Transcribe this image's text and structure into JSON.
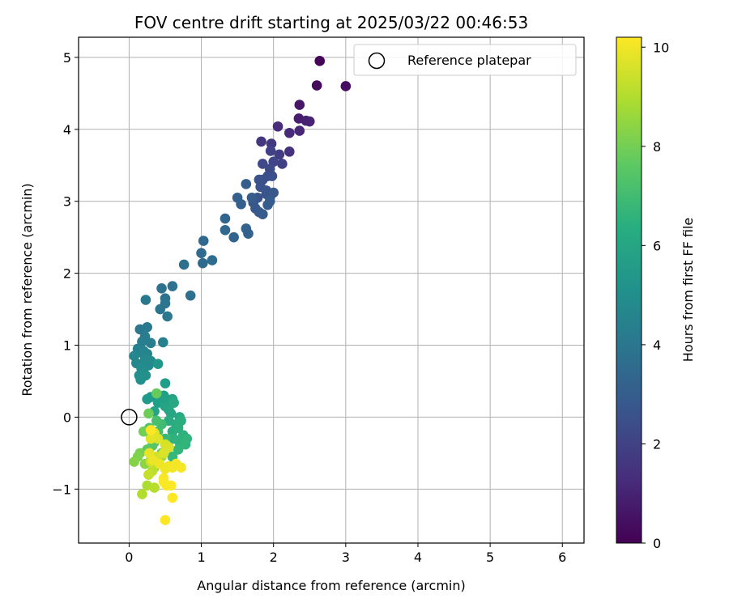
{
  "chart_data": {
    "type": "scatter",
    "title": "FOV centre drift starting at 2025/03/22 00:46:53",
    "xlabel": "Angular distance from reference (arcmin)",
    "ylabel": "Rotation from reference (arcmin)",
    "xlim": [
      -0.7,
      6.3
    ],
    "ylim": [
      -1.75,
      5.28
    ],
    "xticks": [
      0,
      1,
      2,
      3,
      4,
      5,
      6
    ],
    "xtick_labels": [
      "0",
      "1",
      "2",
      "3",
      "4",
      "5",
      "6"
    ],
    "yticks": [
      -1,
      0,
      1,
      2,
      3,
      4,
      5
    ],
    "ytick_labels": [
      "−1",
      "0",
      "1",
      "2",
      "3",
      "4",
      "5"
    ],
    "grid": true,
    "colormap": "viridis",
    "colorbar": {
      "label": "Hours from first FF file",
      "range": [
        0,
        10.2
      ],
      "ticks": [
        0,
        2,
        4,
        6,
        8,
        10
      ],
      "tick_labels": [
        "0",
        "2",
        "4",
        "6",
        "8",
        "10"
      ]
    },
    "legend": {
      "position": "top-right",
      "entries": [
        {
          "label": "Reference platepar",
          "marker": "hollow-circle",
          "color": "#000000"
        }
      ]
    },
    "reference_point": {
      "x": 0,
      "y": 0
    },
    "points": [
      [
        2.64,
        4.95,
        0.1
      ],
      [
        2.6,
        4.61,
        0.25
      ],
      [
        3.0,
        4.6,
        0.35
      ],
      [
        2.36,
        4.34,
        0.6
      ],
      [
        2.35,
        4.15,
        0.8
      ],
      [
        2.45,
        4.12,
        0.9
      ],
      [
        2.5,
        4.11,
        1.0
      ],
      [
        2.36,
        3.98,
        1.1
      ],
      [
        2.22,
        3.95,
        1.2
      ],
      [
        2.06,
        4.04,
        1.3
      ],
      [
        2.22,
        3.69,
        1.5
      ],
      [
        1.83,
        3.83,
        1.6
      ],
      [
        1.97,
        3.8,
        1.7
      ],
      [
        2.08,
        3.65,
        1.8
      ],
      [
        2.12,
        3.52,
        1.9
      ],
      [
        1.96,
        3.7,
        2.0
      ],
      [
        2.0,
        3.55,
        2.1
      ],
      [
        1.85,
        3.52,
        2.2
      ],
      [
        1.95,
        3.45,
        2.3
      ],
      [
        1.92,
        3.35,
        2.4
      ],
      [
        1.85,
        3.3,
        2.5
      ],
      [
        1.98,
        3.35,
        2.5
      ],
      [
        1.8,
        3.3,
        2.55
      ],
      [
        1.82,
        3.2,
        2.6
      ],
      [
        1.9,
        3.15,
        2.6
      ],
      [
        1.78,
        3.05,
        2.65
      ],
      [
        1.9,
        3.1,
        2.7
      ],
      [
        1.95,
        3.05,
        2.7
      ],
      [
        2.0,
        3.12,
        2.75
      ],
      [
        1.72,
        2.98,
        2.8
      ],
      [
        1.75,
        2.9,
        2.8
      ],
      [
        1.8,
        2.85,
        2.85
      ],
      [
        1.85,
        2.82,
        2.9
      ],
      [
        1.92,
        2.95,
        2.9
      ],
      [
        1.95,
        3.0,
        2.95
      ],
      [
        1.7,
        3.05,
        3.0
      ],
      [
        1.62,
        3.24,
        3.0
      ],
      [
        1.5,
        3.05,
        3.05
      ],
      [
        1.55,
        2.96,
        3.1
      ],
      [
        1.65,
        2.55,
        3.15
      ],
      [
        1.62,
        2.62,
        3.2
      ],
      [
        1.45,
        2.5,
        3.25
      ],
      [
        1.33,
        2.76,
        3.3
      ],
      [
        1.33,
        2.6,
        3.35
      ],
      [
        1.03,
        2.45,
        3.4
      ],
      [
        1.0,
        2.28,
        3.5
      ],
      [
        1.02,
        2.14,
        3.55
      ],
      [
        1.15,
        2.18,
        3.6
      ],
      [
        0.76,
        2.12,
        3.7
      ],
      [
        0.85,
        1.69,
        3.75
      ],
      [
        0.45,
        1.79,
        3.8
      ],
      [
        0.6,
        1.82,
        3.85
      ],
      [
        0.5,
        1.65,
        3.9
      ],
      [
        0.5,
        1.58,
        3.95
      ],
      [
        0.43,
        1.5,
        4.0
      ],
      [
        0.53,
        1.4,
        4.05
      ],
      [
        0.23,
        1.63,
        4.1
      ],
      [
        0.15,
        1.22,
        4.15
      ],
      [
        0.25,
        1.25,
        4.2
      ],
      [
        0.22,
        1.12,
        4.25
      ],
      [
        0.18,
        1.05,
        4.3
      ],
      [
        0.3,
        1.03,
        4.35
      ],
      [
        0.47,
        1.04,
        4.4
      ],
      [
        0.12,
        0.95,
        4.5
      ],
      [
        0.15,
        0.9,
        4.55
      ],
      [
        0.2,
        0.92,
        4.6
      ],
      [
        0.25,
        0.88,
        4.65
      ],
      [
        0.1,
        0.75,
        4.7
      ],
      [
        0.07,
        0.85,
        4.75
      ],
      [
        0.22,
        0.8,
        4.8
      ],
      [
        0.27,
        0.72,
        4.85
      ],
      [
        0.3,
        0.78,
        4.9
      ],
      [
        0.17,
        0.68,
        4.95
      ],
      [
        0.2,
        0.62,
        5.0
      ],
      [
        0.14,
        0.58,
        5.05
      ],
      [
        0.23,
        0.58,
        5.1
      ],
      [
        0.16,
        0.52,
        5.15
      ],
      [
        0.4,
        0.74,
        5.4
      ],
      [
        0.25,
        0.25,
        5.5
      ],
      [
        0.3,
        0.28,
        5.6
      ],
      [
        0.5,
        0.47,
        5.65
      ],
      [
        0.48,
        0.3,
        5.7
      ],
      [
        0.4,
        0.2,
        5.75
      ],
      [
        0.52,
        0.25,
        5.8
      ],
      [
        0.6,
        0.25,
        5.85
      ],
      [
        0.35,
        0.08,
        5.9
      ],
      [
        0.5,
        0.15,
        5.95
      ],
      [
        0.55,
        0.1,
        6.0
      ],
      [
        0.58,
        0.05,
        6.05
      ],
      [
        0.62,
        0.2,
        6.1
      ],
      [
        0.7,
        0.0,
        6.15
      ],
      [
        0.55,
        -0.05,
        6.2
      ],
      [
        0.65,
        -0.1,
        6.25
      ],
      [
        0.6,
        -0.2,
        6.3
      ],
      [
        0.72,
        -0.05,
        6.35
      ],
      [
        0.68,
        -0.15,
        6.4
      ],
      [
        0.75,
        -0.25,
        6.45
      ],
      [
        0.62,
        -0.3,
        6.5
      ],
      [
        0.7,
        -0.35,
        6.55
      ],
      [
        0.8,
        -0.3,
        6.6
      ],
      [
        0.78,
        -0.38,
        6.65
      ],
      [
        0.55,
        -0.42,
        6.7
      ],
      [
        0.68,
        -0.45,
        6.75
      ],
      [
        0.6,
        -0.55,
        6.8
      ],
      [
        0.5,
        -0.3,
        6.9
      ],
      [
        0.45,
        -0.1,
        7.0
      ],
      [
        0.4,
        -0.2,
        7.1
      ],
      [
        0.38,
        -0.05,
        7.2
      ],
      [
        0.28,
        -0.15,
        7.3
      ],
      [
        0.35,
        -0.35,
        7.4
      ],
      [
        0.32,
        -0.4,
        7.5
      ],
      [
        0.25,
        -0.45,
        7.6
      ],
      [
        0.3,
        -0.25,
        7.7
      ],
      [
        0.45,
        -0.5,
        7.8
      ],
      [
        0.38,
        0.33,
        7.8
      ],
      [
        0.27,
        0.05,
        7.9
      ],
      [
        0.2,
        -0.2,
        8.0
      ],
      [
        0.15,
        -0.5,
        8.1
      ],
      [
        0.12,
        -0.55,
        8.2
      ],
      [
        0.07,
        -0.62,
        8.3
      ],
      [
        0.22,
        -0.65,
        8.4
      ],
      [
        0.3,
        -0.6,
        8.5
      ],
      [
        0.35,
        -0.7,
        8.6
      ],
      [
        0.4,
        -0.65,
        8.7
      ],
      [
        0.45,
        -0.55,
        8.8
      ],
      [
        0.25,
        -0.95,
        8.9
      ],
      [
        0.18,
        -1.07,
        9.0
      ],
      [
        0.35,
        -0.98,
        9.1
      ],
      [
        0.32,
        -0.75,
        9.2
      ],
      [
        0.27,
        -0.8,
        9.3
      ],
      [
        0.3,
        -0.62,
        9.4
      ],
      [
        0.38,
        -0.55,
        9.5
      ],
      [
        0.5,
        -0.38,
        9.55
      ],
      [
        0.55,
        -0.42,
        9.6
      ],
      [
        0.48,
        -0.5,
        9.65
      ],
      [
        0.4,
        -0.3,
        9.7
      ],
      [
        0.35,
        -0.22,
        9.75
      ],
      [
        0.3,
        -0.3,
        9.8
      ],
      [
        0.28,
        -0.5,
        9.85
      ],
      [
        0.33,
        -0.6,
        9.9
      ],
      [
        0.42,
        -0.65,
        9.95
      ],
      [
        0.5,
        -0.72,
        10.0
      ],
      [
        0.55,
        -0.68,
        10.0
      ],
      [
        0.6,
        -0.7,
        10.05
      ],
      [
        0.65,
        -0.65,
        10.05
      ],
      [
        0.72,
        -0.7,
        10.1
      ],
      [
        0.48,
        -0.85,
        10.1
      ],
      [
        0.52,
        -0.95,
        10.15
      ],
      [
        0.58,
        -0.95,
        10.15
      ],
      [
        0.48,
        -0.9,
        10.15
      ],
      [
        0.6,
        -1.12,
        10.2
      ],
      [
        0.5,
        -1.43,
        10.2
      ],
      [
        0.3,
        -0.18,
        10.2
      ]
    ]
  }
}
